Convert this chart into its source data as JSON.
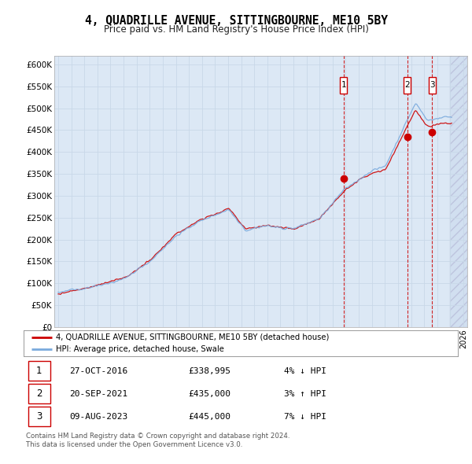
{
  "title": "4, QUADRILLE AVENUE, SITTINGBOURNE, ME10 5BY",
  "subtitle": "Price paid vs. HM Land Registry's House Price Index (HPI)",
  "ylabel_ticks": [
    "£0",
    "£50K",
    "£100K",
    "£150K",
    "£200K",
    "£250K",
    "£300K",
    "£350K",
    "£400K",
    "£450K",
    "£500K",
    "£550K",
    "£600K"
  ],
  "ytick_values": [
    0,
    50000,
    100000,
    150000,
    200000,
    250000,
    300000,
    350000,
    400000,
    450000,
    500000,
    550000,
    600000
  ],
  "xmin": 1994.7,
  "xmax": 2026.3,
  "ymin": 0,
  "ymax": 620000,
  "hatch_start": 2025.0,
  "sale_color": "#cc0000",
  "hpi_color": "#7aaadd",
  "grid_color": "#c8d8e8",
  "bg_color": "#dce8f5",
  "legend_label_sale": "4, QUADRILLE AVENUE, SITTINGBOURNE, ME10 5BY (detached house)",
  "legend_label_hpi": "HPI: Average price, detached house, Swale",
  "transactions": [
    {
      "num": 1,
      "date": "27-OCT-2016",
      "price": 338995,
      "year": 2016.83,
      "pct": "4%",
      "dir": "↓",
      "label": "27-OCT-2016    £338,995        4% ↓ HPI"
    },
    {
      "num": 2,
      "date": "20-SEP-2021",
      "price": 435000,
      "year": 2021.72,
      "pct": "3%",
      "dir": "↑",
      "label": "20-SEP-2021    £435,000        3% ↑ HPI"
    },
    {
      "num": 3,
      "date": "09-AUG-2023",
      "price": 445000,
      "year": 2023.61,
      "pct": "7%",
      "dir": "↓",
      "label": "09-AUG-2023    £445,000        7% ↓ HPI"
    }
  ],
  "footnote1": "Contains HM Land Registry data © Crown copyright and database right 2024.",
  "footnote2": "This data is licensed under the Open Government Licence v3.0.",
  "sale1_year": 2016.83,
  "sale1_price": 338995,
  "sale2_year": 2021.72,
  "sale2_price": 435000,
  "sale3_year": 2023.61,
  "sale3_price": 445000
}
